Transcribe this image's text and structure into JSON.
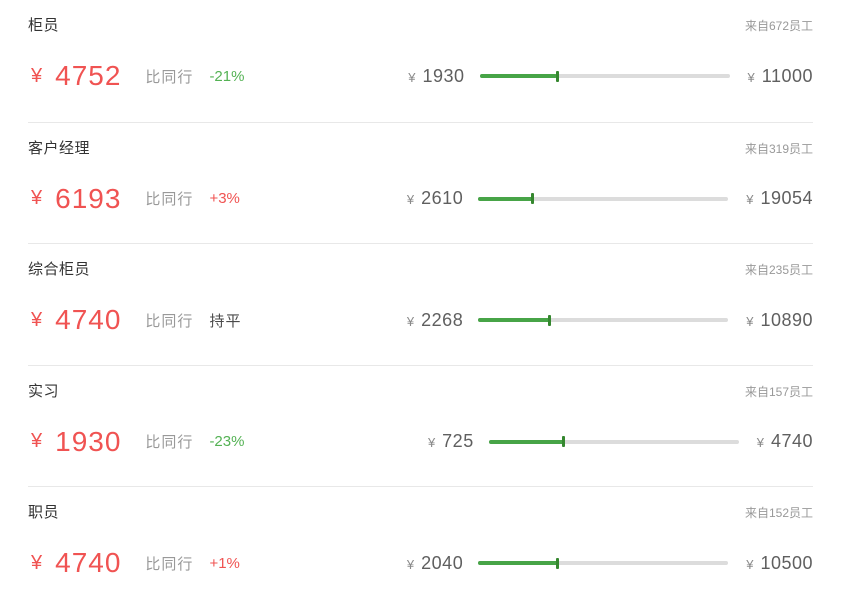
{
  "colors": {
    "red": "#f05352",
    "green_text": "#54b254",
    "flat": "#4a4a4a",
    "bar_green": "#47a447",
    "bar_tick": "#35872f",
    "bar_track": "#dcdcdc",
    "title": "#333333",
    "muted": "#999999",
    "value": "#5f5f5f",
    "separator": "#e8e8e8"
  },
  "rows": [
    {
      "title": "柜员",
      "source": "来自672员工",
      "currency": "¥",
      "salary": "4752",
      "compare_label": "比同行",
      "delta": "-21%",
      "delta_type": "down",
      "min": "1930",
      "max": "11000",
      "fill_percent": 31.1
    },
    {
      "title": "客户经理",
      "source": "来自319员工",
      "currency": "¥",
      "salary": "6193",
      "compare_label": "比同行",
      "delta": "+3%",
      "delta_type": "up",
      "min": "2610",
      "max": "19054",
      "fill_percent": 21.8
    },
    {
      "title": "综合柜员",
      "source": "来自235员工",
      "currency": "¥",
      "salary": "4740",
      "compare_label": "比同行",
      "delta": "持平",
      "delta_type": "flat",
      "min": "2268",
      "max": "10890",
      "fill_percent": 28.7
    },
    {
      "title": "实习",
      "source": "来自157员工",
      "currency": "¥",
      "salary": "1930",
      "compare_label": "比同行",
      "delta": "-23%",
      "delta_type": "down",
      "min": "725",
      "max": "4740",
      "fill_percent": 30.0
    },
    {
      "title": "职员",
      "source": "来自152员工",
      "currency": "¥",
      "salary": "4740",
      "compare_label": "比同行",
      "delta": "+1%",
      "delta_type": "up",
      "min": "2040",
      "max": "10500",
      "fill_percent": 31.9
    }
  ]
}
